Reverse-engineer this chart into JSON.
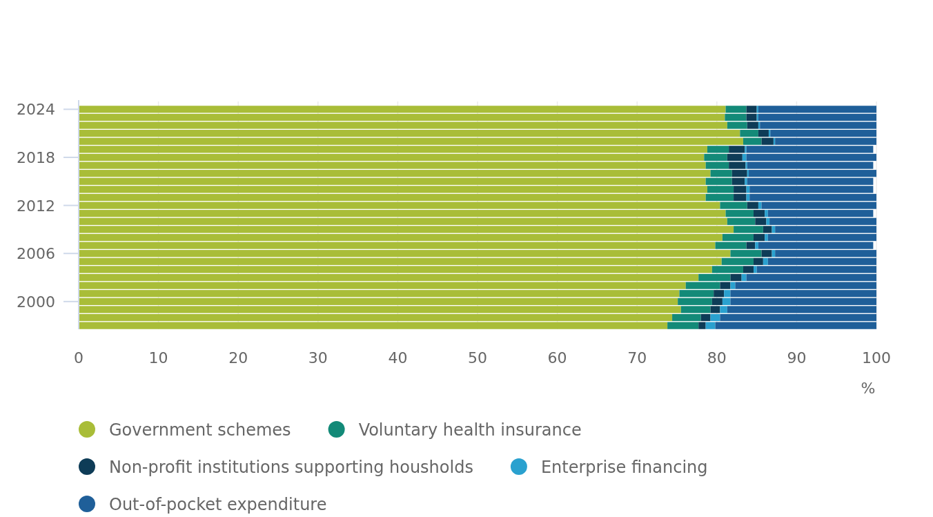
{
  "chart_data": {
    "type": "bar",
    "orientation": "horizontal",
    "stacked": true,
    "xlabel": "%",
    "categories": [
      "2024",
      null,
      null,
      null,
      null,
      null,
      "2018",
      null,
      null,
      null,
      null,
      null,
      "2012",
      null,
      null,
      null,
      null,
      null,
      "2006",
      null,
      null,
      null,
      null,
      null,
      "2000",
      null,
      null,
      null
    ],
    "series": [
      {
        "name": "Government schemes",
        "color": "#a9bd38",
        "values": [
          81.1,
          81.0,
          81.3,
          82.9,
          83.3,
          78.8,
          78.4,
          78.6,
          79.2,
          78.6,
          78.8,
          78.6,
          80.4,
          81.1,
          81.3,
          82.1,
          80.7,
          79.8,
          81.7,
          80.6,
          79.4,
          77.7,
          76.1,
          75.3,
          75.1,
          75.5,
          74.4,
          73.8
        ]
      },
      {
        "name": "Voluntary health insurance",
        "color": "#138a78",
        "values": [
          2.6,
          2.7,
          2.5,
          2.3,
          2.3,
          2.7,
          2.9,
          2.9,
          2.7,
          3.3,
          3.3,
          3.5,
          3.4,
          3.5,
          3.5,
          3.7,
          3.9,
          3.9,
          3.9,
          4.0,
          3.9,
          4.0,
          4.3,
          4.3,
          4.3,
          3.7,
          3.6,
          3.9
        ]
      },
      {
        "name": "Non-profit institutions supporting housholds",
        "color": "#0e3c57",
        "values": [
          1.3,
          1.3,
          1.4,
          1.3,
          1.5,
          2.0,
          1.9,
          2.1,
          1.9,
          1.6,
          1.6,
          1.6,
          1.4,
          1.4,
          1.4,
          1.1,
          1.4,
          1.1,
          1.3,
          1.2,
          1.3,
          1.4,
          1.3,
          1.3,
          1.3,
          1.2,
          1.2,
          0.9
        ]
      },
      {
        "name": "Enterprise financing",
        "color": "#2aa1cf",
        "values": [
          0.2,
          0.2,
          0.2,
          0.2,
          0.2,
          0.2,
          0.5,
          0.2,
          0.2,
          0.3,
          0.4,
          0.4,
          0.4,
          0.4,
          0.4,
          0.4,
          0.4,
          0.4,
          0.4,
          0.6,
          0.4,
          0.6,
          0.6,
          0.8,
          1.0,
          0.9,
          1.2,
          1.2
        ]
      },
      {
        "name": "Out-of-pocket expenditure",
        "color": "#1f5f99",
        "values": [
          14.8,
          14.8,
          14.6,
          13.3,
          12.7,
          15.9,
          16.3,
          15.8,
          16.0,
          15.8,
          15.5,
          15.9,
          14.4,
          13.2,
          13.4,
          12.7,
          13.6,
          14.4,
          12.7,
          13.6,
          15.0,
          16.3,
          17.7,
          18.3,
          18.3,
          18.7,
          19.6,
          20.2
        ]
      }
    ],
    "xlim": [
      0,
      100
    ],
    "xticks": [
      0,
      10,
      20,
      30,
      40,
      50,
      60,
      70,
      80,
      90,
      100
    ],
    "grid": "x",
    "legend": "bottom"
  }
}
